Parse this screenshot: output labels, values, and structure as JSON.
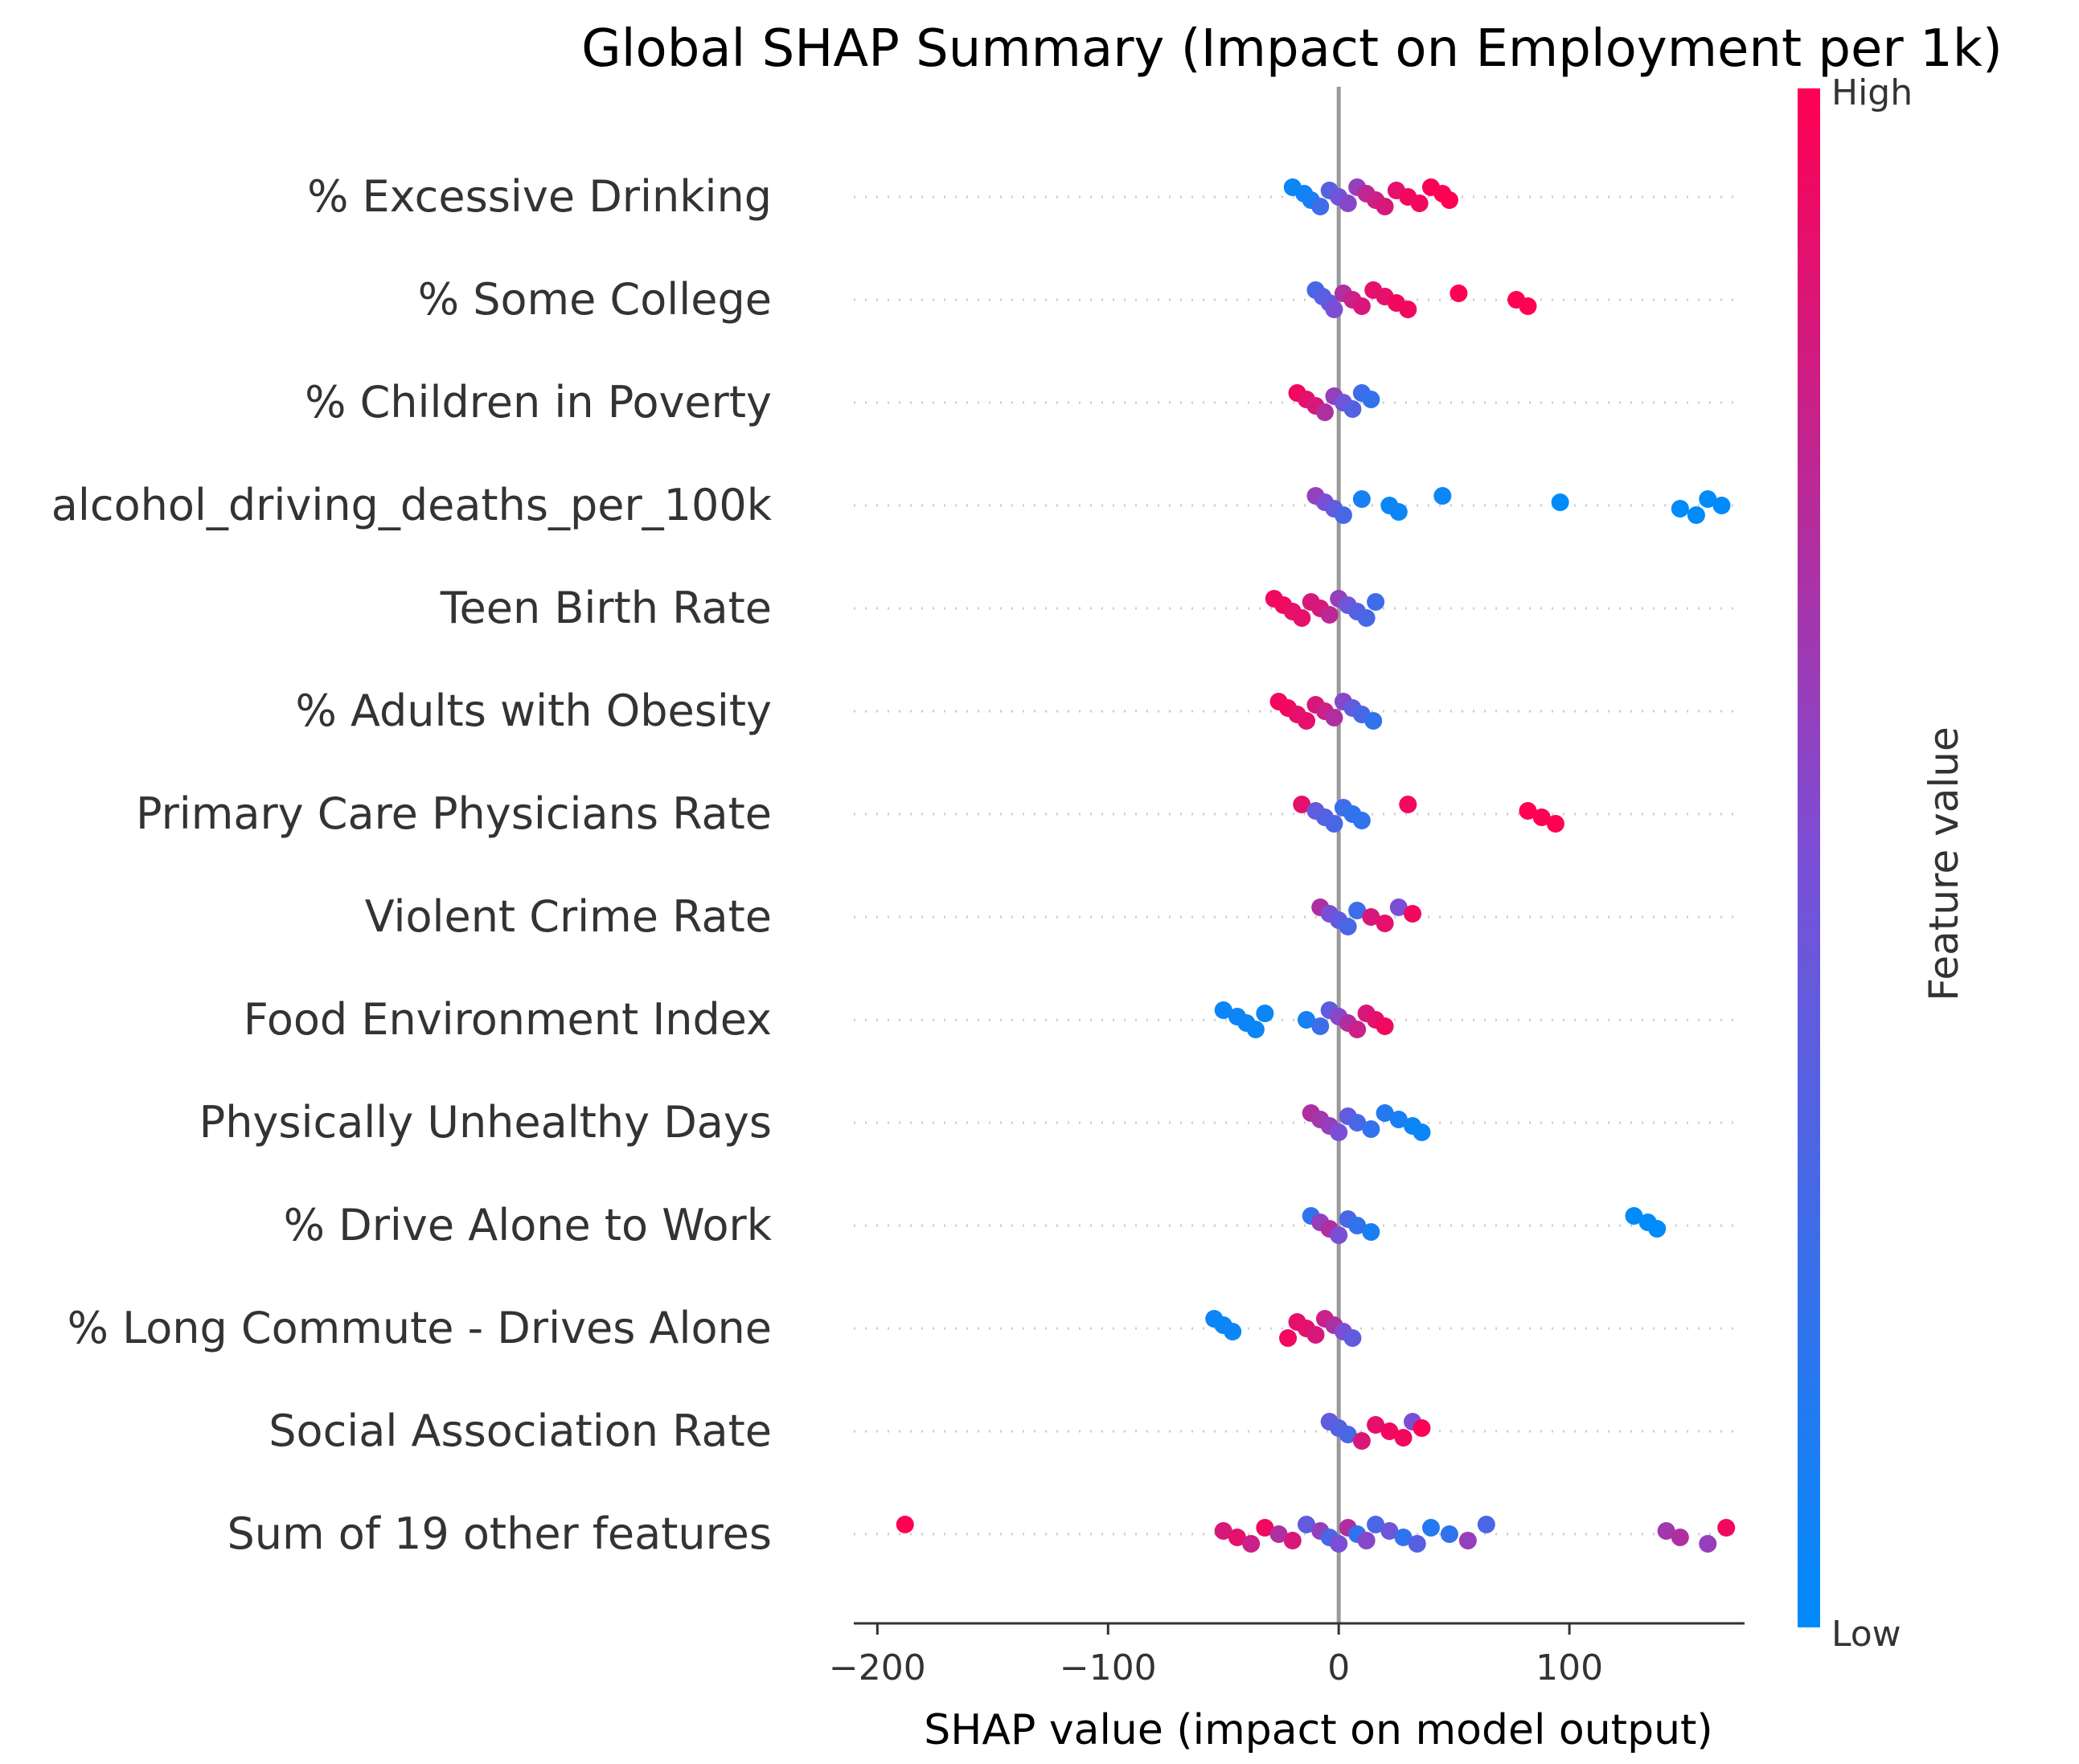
{
  "chart_data": {
    "type": "scatter",
    "subtype": "shap-beeswarm",
    "title": "Global SHAP Summary (Impact on Employment per 1k)",
    "xlabel": "SHAP value (impact on model output)",
    "ylabel": "",
    "xlim": [
      -205,
      185
    ],
    "xticks": [
      -200,
      -100,
      0,
      100
    ],
    "xtick_labels": [
      "−200",
      "−100",
      "0",
      "100"
    ],
    "colorbar": {
      "label": "Feature value",
      "high": "High",
      "low": "Low",
      "high_color": "#ff0052",
      "low_color": "#008bfb"
    },
    "features": [
      {
        "name": "% Excessive Drinking",
        "points": [
          {
            "x": -20,
            "v": 0.05
          },
          {
            "x": -15,
            "v": 0.05
          },
          {
            "x": -12,
            "v": 0.1
          },
          {
            "x": -8,
            "v": 0.25
          },
          {
            "x": -4,
            "v": 0.35
          },
          {
            "x": 0,
            "v": 0.45
          },
          {
            "x": 4,
            "v": 0.55
          },
          {
            "x": 8,
            "v": 0.6
          },
          {
            "x": 12,
            "v": 0.75
          },
          {
            "x": 16,
            "v": 0.8
          },
          {
            "x": 20,
            "v": 0.85
          },
          {
            "x": 25,
            "v": 0.9
          },
          {
            "x": 30,
            "v": 0.95
          },
          {
            "x": 35,
            "v": 0.95
          },
          {
            "x": 40,
            "v": 0.98
          },
          {
            "x": 45,
            "v": 1.0
          },
          {
            "x": 48,
            "v": 1.0
          }
        ]
      },
      {
        "name": "% Some College",
        "points": [
          {
            "x": -10,
            "v": 0.3
          },
          {
            "x": -7,
            "v": 0.35
          },
          {
            "x": -4,
            "v": 0.4
          },
          {
            "x": -2,
            "v": 0.5
          },
          {
            "x": 2,
            "v": 0.7
          },
          {
            "x": 6,
            "v": 0.8
          },
          {
            "x": 10,
            "v": 0.85
          },
          {
            "x": 15,
            "v": 0.9
          },
          {
            "x": 20,
            "v": 0.9
          },
          {
            "x": 25,
            "v": 0.95
          },
          {
            "x": 30,
            "v": 0.95
          },
          {
            "x": 52,
            "v": 1.0
          },
          {
            "x": 77,
            "v": 1.0
          },
          {
            "x": 82,
            "v": 1.0
          }
        ]
      },
      {
        "name": "% Children in Poverty",
        "points": [
          {
            "x": -18,
            "v": 0.95
          },
          {
            "x": -14,
            "v": 0.9
          },
          {
            "x": -10,
            "v": 0.85
          },
          {
            "x": -6,
            "v": 0.7
          },
          {
            "x": -2,
            "v": 0.6
          },
          {
            "x": 2,
            "v": 0.45
          },
          {
            "x": 6,
            "v": 0.35
          },
          {
            "x": 10,
            "v": 0.25
          },
          {
            "x": 14,
            "v": 0.2
          }
        ]
      },
      {
        "name": "alcohol_driving_deaths_per_100k",
        "points": [
          {
            "x": -10,
            "v": 0.6
          },
          {
            "x": -6,
            "v": 0.5
          },
          {
            "x": -2,
            "v": 0.4
          },
          {
            "x": 2,
            "v": 0.3
          },
          {
            "x": 10,
            "v": 0.1
          },
          {
            "x": 22,
            "v": 0.05
          },
          {
            "x": 26,
            "v": 0.05
          },
          {
            "x": 45,
            "v": 0.05
          },
          {
            "x": 96,
            "v": 0.0
          },
          {
            "x": 148,
            "v": 0.0
          },
          {
            "x": 155,
            "v": 0.0
          },
          {
            "x": 160,
            "v": 0.0
          },
          {
            "x": 166,
            "v": 0.0
          }
        ]
      },
      {
        "name": "Teen Birth Rate",
        "points": [
          {
            "x": -28,
            "v": 0.95
          },
          {
            "x": -24,
            "v": 0.95
          },
          {
            "x": -20,
            "v": 0.9
          },
          {
            "x": -16,
            "v": 0.9
          },
          {
            "x": -12,
            "v": 0.85
          },
          {
            "x": -8,
            "v": 0.85
          },
          {
            "x": -4,
            "v": 0.75
          },
          {
            "x": 0,
            "v": 0.6
          },
          {
            "x": 4,
            "v": 0.45
          },
          {
            "x": 8,
            "v": 0.35
          },
          {
            "x": 12,
            "v": 0.3
          },
          {
            "x": 16,
            "v": 0.25
          }
        ]
      },
      {
        "name": "% Adults with Obesity",
        "points": [
          {
            "x": -26,
            "v": 0.95
          },
          {
            "x": -22,
            "v": 0.95
          },
          {
            "x": -18,
            "v": 0.9
          },
          {
            "x": -14,
            "v": 0.9
          },
          {
            "x": -10,
            "v": 0.85
          },
          {
            "x": -6,
            "v": 0.8
          },
          {
            "x": -2,
            "v": 0.7
          },
          {
            "x": 2,
            "v": 0.55
          },
          {
            "x": 6,
            "v": 0.4
          },
          {
            "x": 10,
            "v": 0.3
          },
          {
            "x": 15,
            "v": 0.2
          }
        ]
      },
      {
        "name": "Primary Care Physicians Rate",
        "points": [
          {
            "x": -16,
            "v": 0.9
          },
          {
            "x": -10,
            "v": 0.4
          },
          {
            "x": -6,
            "v": 0.35
          },
          {
            "x": -2,
            "v": 0.3
          },
          {
            "x": 2,
            "v": 0.25
          },
          {
            "x": 6,
            "v": 0.2
          },
          {
            "x": 10,
            "v": 0.2
          },
          {
            "x": 30,
            "v": 0.95
          },
          {
            "x": 82,
            "v": 1.0
          },
          {
            "x": 88,
            "v": 1.0
          },
          {
            "x": 94,
            "v": 1.0
          }
        ]
      },
      {
        "name": "Violent Crime Rate",
        "points": [
          {
            "x": -8,
            "v": 0.7
          },
          {
            "x": -4,
            "v": 0.5
          },
          {
            "x": 0,
            "v": 0.4
          },
          {
            "x": 4,
            "v": 0.3
          },
          {
            "x": 8,
            "v": 0.25
          },
          {
            "x": 14,
            "v": 0.85
          },
          {
            "x": 20,
            "v": 0.9
          },
          {
            "x": 26,
            "v": 0.5
          },
          {
            "x": 32,
            "v": 0.95
          }
        ]
      },
      {
        "name": "Food Environment Index",
        "points": [
          {
            "x": -50,
            "v": 0.05
          },
          {
            "x": -44,
            "v": 0.05
          },
          {
            "x": -40,
            "v": 0.05
          },
          {
            "x": -36,
            "v": 0.05
          },
          {
            "x": -32,
            "v": 0.05
          },
          {
            "x": -14,
            "v": 0.1
          },
          {
            "x": -8,
            "v": 0.25
          },
          {
            "x": -4,
            "v": 0.4
          },
          {
            "x": 0,
            "v": 0.55
          },
          {
            "x": 4,
            "v": 0.7
          },
          {
            "x": 8,
            "v": 0.8
          },
          {
            "x": 12,
            "v": 0.85
          },
          {
            "x": 16,
            "v": 0.9
          },
          {
            "x": 20,
            "v": 0.95
          }
        ]
      },
      {
        "name": "Physically Unhealthy Days",
        "points": [
          {
            "x": -12,
            "v": 0.7
          },
          {
            "x": -8,
            "v": 0.65
          },
          {
            "x": -4,
            "v": 0.6
          },
          {
            "x": 0,
            "v": 0.5
          },
          {
            "x": 4,
            "v": 0.4
          },
          {
            "x": 8,
            "v": 0.3
          },
          {
            "x": 14,
            "v": 0.2
          },
          {
            "x": 20,
            "v": 0.15
          },
          {
            "x": 26,
            "v": 0.1
          },
          {
            "x": 32,
            "v": 0.05
          },
          {
            "x": 36,
            "v": 0.05
          }
        ]
      },
      {
        "name": "% Drive Alone to Work",
        "points": [
          {
            "x": -12,
            "v": 0.2
          },
          {
            "x": -8,
            "v": 0.6
          },
          {
            "x": -4,
            "v": 0.7
          },
          {
            "x": 0,
            "v": 0.5
          },
          {
            "x": 4,
            "v": 0.3
          },
          {
            "x": 8,
            "v": 0.2
          },
          {
            "x": 14,
            "v": 0.1
          },
          {
            "x": 128,
            "v": 0.0
          },
          {
            "x": 134,
            "v": 0.0
          },
          {
            "x": 138,
            "v": 0.0
          }
        ]
      },
      {
        "name": "% Long Commute - Drives Alone",
        "points": [
          {
            "x": -54,
            "v": 0.05
          },
          {
            "x": -50,
            "v": 0.05
          },
          {
            "x": -46,
            "v": 0.05
          },
          {
            "x": -22,
            "v": 0.95
          },
          {
            "x": -18,
            "v": 0.9
          },
          {
            "x": -14,
            "v": 0.9
          },
          {
            "x": -10,
            "v": 0.85
          },
          {
            "x": -6,
            "v": 0.8
          },
          {
            "x": -2,
            "v": 0.7
          },
          {
            "x": 2,
            "v": 0.5
          },
          {
            "x": 6,
            "v": 0.4
          }
        ]
      },
      {
        "name": "Social Association Rate",
        "points": [
          {
            "x": -4,
            "v": 0.4
          },
          {
            "x": 0,
            "v": 0.35
          },
          {
            "x": 4,
            "v": 0.3
          },
          {
            "x": 10,
            "v": 0.85
          },
          {
            "x": 16,
            "v": 0.9
          },
          {
            "x": 22,
            "v": 0.95
          },
          {
            "x": 28,
            "v": 0.95
          },
          {
            "x": 32,
            "v": 0.5
          },
          {
            "x": 36,
            "v": 1.0
          }
        ]
      },
      {
        "name": "Sum of 19 other features",
        "points": [
          {
            "x": -188,
            "v": 1.0
          },
          {
            "x": -50,
            "v": 0.85
          },
          {
            "x": -44,
            "v": 0.9
          },
          {
            "x": -38,
            "v": 0.8
          },
          {
            "x": -32,
            "v": 0.95
          },
          {
            "x": -26,
            "v": 0.7
          },
          {
            "x": -20,
            "v": 0.85
          },
          {
            "x": -14,
            "v": 0.4
          },
          {
            "x": -8,
            "v": 0.6
          },
          {
            "x": -4,
            "v": 0.3
          },
          {
            "x": 0,
            "v": 0.5
          },
          {
            "x": 4,
            "v": 0.7
          },
          {
            "x": 8,
            "v": 0.2
          },
          {
            "x": 12,
            "v": 0.55
          },
          {
            "x": 16,
            "v": 0.3
          },
          {
            "x": 22,
            "v": 0.45
          },
          {
            "x": 28,
            "v": 0.2
          },
          {
            "x": 34,
            "v": 0.35
          },
          {
            "x": 40,
            "v": 0.15
          },
          {
            "x": 48,
            "v": 0.2
          },
          {
            "x": 56,
            "v": 0.6
          },
          {
            "x": 64,
            "v": 0.3
          },
          {
            "x": 142,
            "v": 0.65
          },
          {
            "x": 148,
            "v": 0.7
          },
          {
            "x": 160,
            "v": 0.6
          },
          {
            "x": 168,
            "v": 0.95
          }
        ]
      }
    ]
  }
}
